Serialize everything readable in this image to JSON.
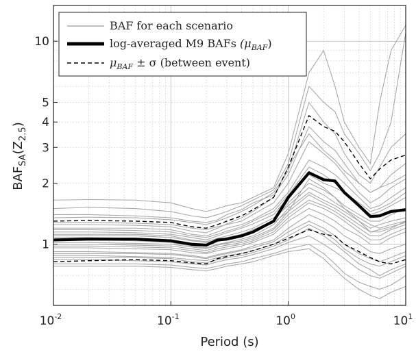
{
  "chart_data": {
    "type": "line",
    "xscale": "log",
    "yscale": "log",
    "xlim": [
      0.01,
      10
    ],
    "ylim": [
      0.5,
      15
    ],
    "xlabel": "Period (s)",
    "ylabel": {
      "main": "BAF",
      "sub": "SA",
      "paren": "(Z",
      "paren_sub": "2.5",
      "paren_close": ")"
    },
    "grid": true,
    "xticks": [
      {
        "value": 0.01,
        "base": "10",
        "exp": "-2"
      },
      {
        "value": 0.1,
        "base": "10",
        "exp": "-1"
      },
      {
        "value": 1,
        "base": "10",
        "exp": "0"
      },
      {
        "value": 10,
        "base": "10",
        "exp": "1"
      }
    ],
    "yticks": [
      {
        "value": 1,
        "label": "1"
      },
      {
        "value": 2,
        "label": "2"
      },
      {
        "value": 3,
        "label": "3"
      },
      {
        "value": 4,
        "label": "4"
      },
      {
        "value": 5,
        "label": "5"
      },
      {
        "value": 10,
        "label": "10"
      }
    ],
    "periods": [
      0.01,
      0.02,
      0.05,
      0.1,
      0.15,
      0.2,
      0.25,
      0.3,
      0.4,
      0.5,
      0.75,
      1.0,
      1.5,
      2.0,
      2.5,
      3.0,
      4.0,
      5.0,
      6.0,
      7.5,
      10.0
    ],
    "legend": {
      "position": "top-left",
      "entries": [
        {
          "text": "BAF for each scenario",
          "style": "thin-gray"
        },
        {
          "text": "log-averaged M9 BAFs",
          "math": "(μ",
          "math_sub": "BAF",
          "math_close": ")",
          "style": "thick-black"
        },
        {
          "text": "",
          "math": "μ",
          "math_sub": "BAF",
          "math_close": " ± σ",
          "suffix": " (between event)",
          "style": "dashed-black"
        }
      ]
    },
    "series": [
      {
        "name": "log-averaged M9 BAFs",
        "style": "mean",
        "values": [
          1.05,
          1.06,
          1.06,
          1.04,
          1.0,
          0.99,
          1.05,
          1.06,
          1.1,
          1.15,
          1.3,
          1.7,
          2.25,
          2.08,
          2.05,
          1.8,
          1.55,
          1.37,
          1.38,
          1.45,
          1.48
        ]
      },
      {
        "name": "mean + sigma",
        "style": "sigma",
        "values": [
          1.3,
          1.31,
          1.3,
          1.28,
          1.22,
          1.2,
          1.25,
          1.3,
          1.38,
          1.48,
          1.7,
          2.4,
          4.3,
          3.8,
          3.6,
          3.2,
          2.5,
          2.1,
          2.35,
          2.6,
          2.75
        ]
      },
      {
        "name": "mean - sigma",
        "style": "sigma",
        "values": [
          0.82,
          0.83,
          0.84,
          0.83,
          0.81,
          0.8,
          0.85,
          0.87,
          0.9,
          0.93,
          1.0,
          1.07,
          1.18,
          1.12,
          1.1,
          1.0,
          0.92,
          0.86,
          0.82,
          0.8,
          0.84
        ]
      },
      {
        "style": "scenario",
        "values": [
          1.65,
          1.66,
          1.65,
          1.6,
          1.5,
          1.45,
          1.5,
          1.55,
          1.6,
          1.7,
          1.9,
          2.8,
          7.0,
          9.0,
          6.0,
          4.0,
          3.0,
          2.5,
          5.0,
          9.0,
          12.0
        ]
      },
      {
        "style": "scenario",
        "values": [
          1.5,
          1.52,
          1.5,
          1.45,
          1.38,
          1.35,
          1.4,
          1.45,
          1.55,
          1.65,
          1.85,
          2.5,
          6.0,
          5.0,
          4.5,
          3.5,
          2.8,
          2.3,
          2.8,
          4.0,
          11.0
        ]
      },
      {
        "style": "scenario",
        "values": [
          1.35,
          1.36,
          1.35,
          1.32,
          1.28,
          1.25,
          1.3,
          1.35,
          1.45,
          1.55,
          1.8,
          2.3,
          5.0,
          4.0,
          3.5,
          2.8,
          2.2,
          2.0,
          2.4,
          3.0,
          3.5
        ]
      },
      {
        "style": "scenario",
        "values": [
          1.4,
          1.4,
          1.38,
          1.35,
          1.3,
          1.28,
          1.32,
          1.4,
          1.48,
          1.6,
          1.75,
          2.2,
          3.8,
          3.2,
          2.9,
          2.5,
          2.0,
          1.8,
          1.9,
          2.2,
          2.5
        ]
      },
      {
        "style": "scenario",
        "values": [
          1.28,
          1.28,
          1.27,
          1.25,
          1.2,
          1.18,
          1.22,
          1.25,
          1.3,
          1.4,
          1.6,
          2.0,
          3.2,
          2.8,
          2.5,
          2.2,
          1.8,
          1.6,
          1.7,
          1.9,
          2.1
        ]
      },
      {
        "style": "scenario",
        "values": [
          1.2,
          1.2,
          1.2,
          1.18,
          1.12,
          1.1,
          1.15,
          1.2,
          1.25,
          1.32,
          1.5,
          1.8,
          2.6,
          2.4,
          2.2,
          2.0,
          1.7,
          1.5,
          1.55,
          1.7,
          1.9
        ]
      },
      {
        "style": "scenario",
        "values": [
          1.15,
          1.15,
          1.14,
          1.12,
          1.08,
          1.05,
          1.1,
          1.14,
          1.2,
          1.26,
          1.4,
          1.7,
          2.2,
          2.0,
          1.9,
          1.8,
          1.55,
          1.4,
          1.45,
          1.55,
          1.7
        ]
      },
      {
        "style": "scenario",
        "values": [
          1.1,
          1.1,
          1.1,
          1.08,
          1.04,
          1.02,
          1.05,
          1.08,
          1.12,
          1.18,
          1.3,
          1.6,
          2.0,
          1.85,
          1.7,
          1.55,
          1.4,
          1.3,
          1.3,
          1.4,
          1.5
        ]
      },
      {
        "style": "scenario",
        "values": [
          1.05,
          1.05,
          1.04,
          1.02,
          0.98,
          0.96,
          1.0,
          1.02,
          1.06,
          1.1,
          1.25,
          1.5,
          1.8,
          1.65,
          1.55,
          1.45,
          1.3,
          1.2,
          1.25,
          1.3,
          1.35
        ]
      },
      {
        "style": "scenario",
        "values": [
          1.0,
          1.0,
          0.99,
          0.98,
          0.95,
          0.93,
          0.97,
          0.99,
          1.02,
          1.06,
          1.18,
          1.4,
          1.65,
          1.55,
          1.45,
          1.35,
          1.2,
          1.1,
          1.1,
          1.18,
          1.25
        ]
      },
      {
        "style": "scenario",
        "values": [
          0.96,
          0.96,
          0.95,
          0.94,
          0.91,
          0.9,
          0.93,
          0.95,
          0.98,
          1.02,
          1.12,
          1.3,
          1.5,
          1.4,
          1.3,
          1.2,
          1.1,
          1.0,
          1.0,
          1.08,
          1.15
        ]
      },
      {
        "style": "scenario",
        "values": [
          0.92,
          0.92,
          0.91,
          0.9,
          0.88,
          0.86,
          0.89,
          0.91,
          0.94,
          0.98,
          1.05,
          1.2,
          1.4,
          1.3,
          1.2,
          1.1,
          1.0,
          0.92,
          0.9,
          0.95,
          1.0
        ]
      },
      {
        "style": "scenario",
        "values": [
          0.88,
          0.88,
          0.87,
          0.86,
          0.84,
          0.83,
          0.86,
          0.88,
          0.9,
          0.93,
          1.0,
          1.1,
          1.25,
          1.15,
          1.05,
          0.95,
          0.85,
          0.8,
          0.78,
          0.82,
          0.88
        ]
      },
      {
        "style": "scenario",
        "values": [
          0.84,
          0.84,
          0.83,
          0.82,
          0.8,
          0.79,
          0.82,
          0.84,
          0.86,
          0.89,
          0.95,
          1.02,
          1.1,
          1.0,
          0.92,
          0.85,
          0.75,
          0.7,
          0.68,
          0.72,
          0.78
        ]
      },
      {
        "style": "scenario",
        "values": [
          0.8,
          0.8,
          0.8,
          0.79,
          0.77,
          0.76,
          0.78,
          0.8,
          0.82,
          0.85,
          0.9,
          0.95,
          1.0,
          0.9,
          0.8,
          0.72,
          0.65,
          0.62,
          0.6,
          0.63,
          0.7
        ]
      },
      {
        "style": "scenario",
        "values": [
          0.78,
          0.78,
          0.78,
          0.77,
          0.75,
          0.74,
          0.76,
          0.78,
          0.8,
          0.82,
          0.88,
          0.92,
          0.95,
          0.85,
          0.75,
          0.68,
          0.6,
          0.56,
          0.54,
          0.58,
          0.62
        ]
      },
      {
        "style": "scenario",
        "values": [
          1.25,
          1.25,
          1.24,
          1.22,
          1.16,
          1.14,
          1.2,
          1.26,
          1.35,
          1.45,
          1.7,
          2.4,
          3.5,
          2.9,
          2.6,
          2.3,
          2.0,
          1.8,
          1.9,
          2.0,
          2.2
        ]
      },
      {
        "style": "scenario",
        "values": [
          1.12,
          1.12,
          1.12,
          1.1,
          1.05,
          1.03,
          1.07,
          1.1,
          1.15,
          1.2,
          1.35,
          1.55,
          1.9,
          1.75,
          1.6,
          1.5,
          1.35,
          1.25,
          1.2,
          1.25,
          1.3
        ]
      },
      {
        "style": "scenario",
        "values": [
          0.98,
          0.98,
          0.97,
          0.96,
          0.93,
          0.91,
          0.95,
          0.97,
          1.0,
          1.04,
          1.15,
          1.35,
          1.6,
          1.5,
          1.4,
          1.3,
          1.15,
          1.05,
          1.05,
          1.12,
          1.2
        ]
      },
      {
        "style": "scenario",
        "values": [
          1.08,
          1.08,
          1.07,
          1.05,
          1.0,
          0.98,
          1.03,
          1.06,
          1.1,
          1.15,
          1.28,
          1.45,
          1.75,
          1.6,
          1.5,
          1.4,
          1.25,
          1.15,
          1.18,
          1.22,
          1.28
        ]
      },
      {
        "style": "scenario",
        "values": [
          0.9,
          0.9,
          0.9,
          0.89,
          0.87,
          0.85,
          0.88,
          0.9,
          0.93,
          0.96,
          1.03,
          1.15,
          1.3,
          1.2,
          1.1,
          1.0,
          0.9,
          0.85,
          0.82,
          0.86,
          0.92
        ]
      },
      {
        "style": "scenario",
        "values": [
          1.02,
          1.02,
          1.01,
          1.0,
          0.97,
          0.95,
          0.99,
          1.01,
          1.04,
          1.08,
          1.2,
          1.45,
          2.1,
          1.9,
          1.7,
          1.5,
          1.3,
          1.15,
          1.15,
          1.2,
          1.3
        ]
      },
      {
        "style": "scenario",
        "values": [
          1.18,
          1.18,
          1.17,
          1.15,
          1.1,
          1.08,
          1.12,
          1.16,
          1.22,
          1.3,
          1.45,
          1.75,
          2.4,
          2.2,
          2.0,
          1.8,
          1.6,
          1.45,
          1.5,
          1.6,
          1.8
        ]
      },
      {
        "style": "scenario",
        "values": [
          0.86,
          0.86,
          0.86,
          0.85,
          0.82,
          0.81,
          0.84,
          0.86,
          0.88,
          0.91,
          0.98,
          1.05,
          1.2,
          1.1,
          1.0,
          0.92,
          0.8,
          0.75,
          0.7,
          0.75,
          0.8
        ]
      }
    ]
  }
}
